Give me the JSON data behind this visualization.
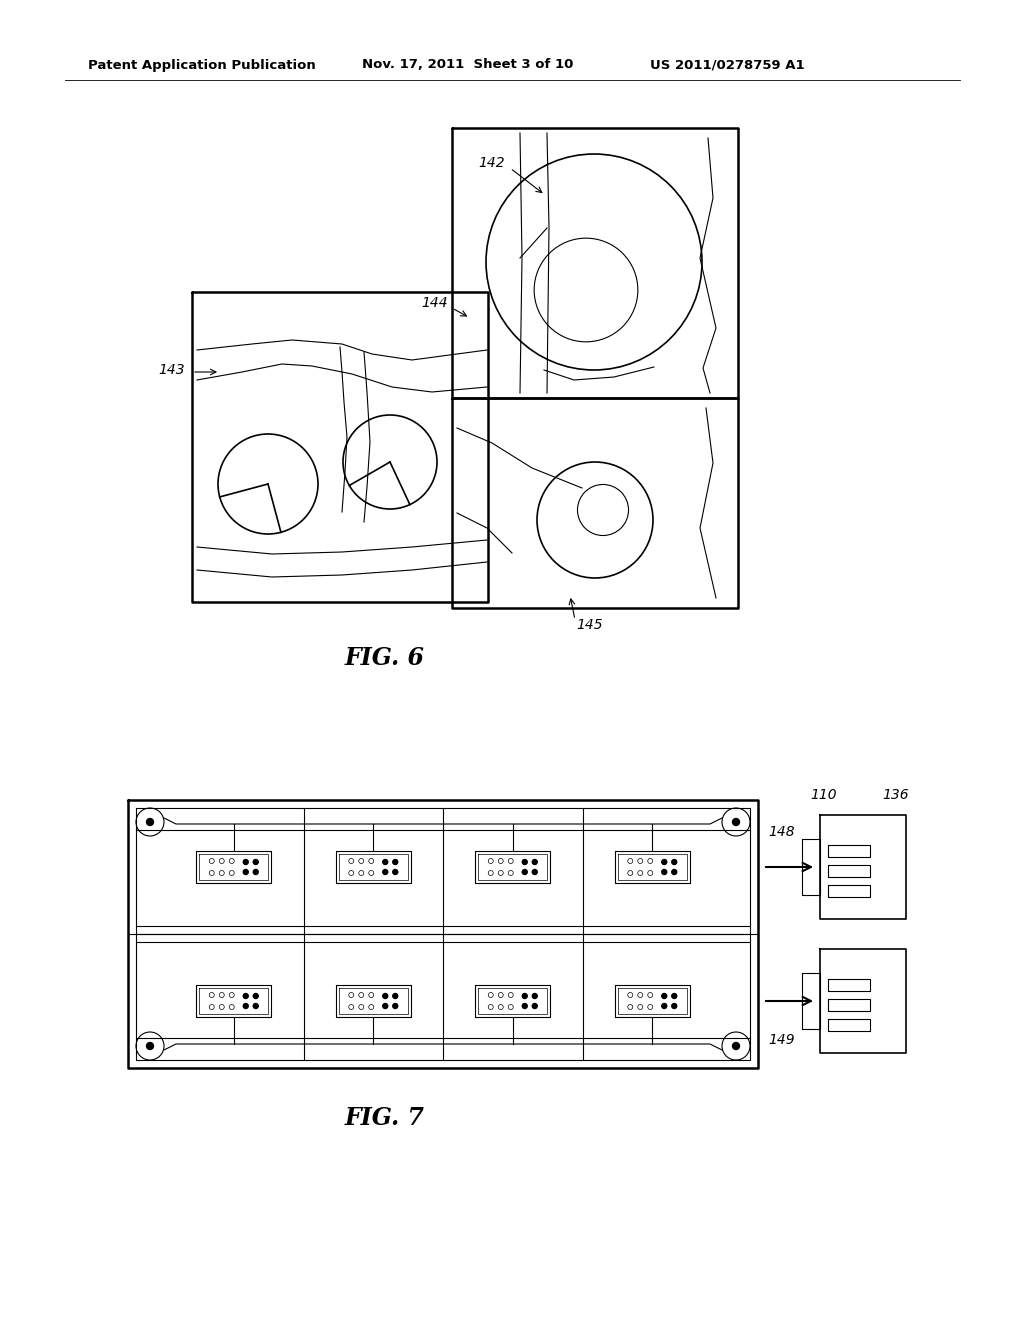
{
  "bg_color": "#ffffff",
  "header_text": "Patent Application Publication",
  "header_date": "Nov. 17, 2011  Sheet 3 of 10",
  "header_patent": "US 2011/0278759 A1",
  "fig6_title": "FIG. 6",
  "fig7_title": "FIG. 7",
  "label_142": "142",
  "label_143": "143",
  "label_144": "144",
  "label_145": "145",
  "label_148": "148",
  "label_149": "149",
  "label_110": "110",
  "label_136": "136"
}
